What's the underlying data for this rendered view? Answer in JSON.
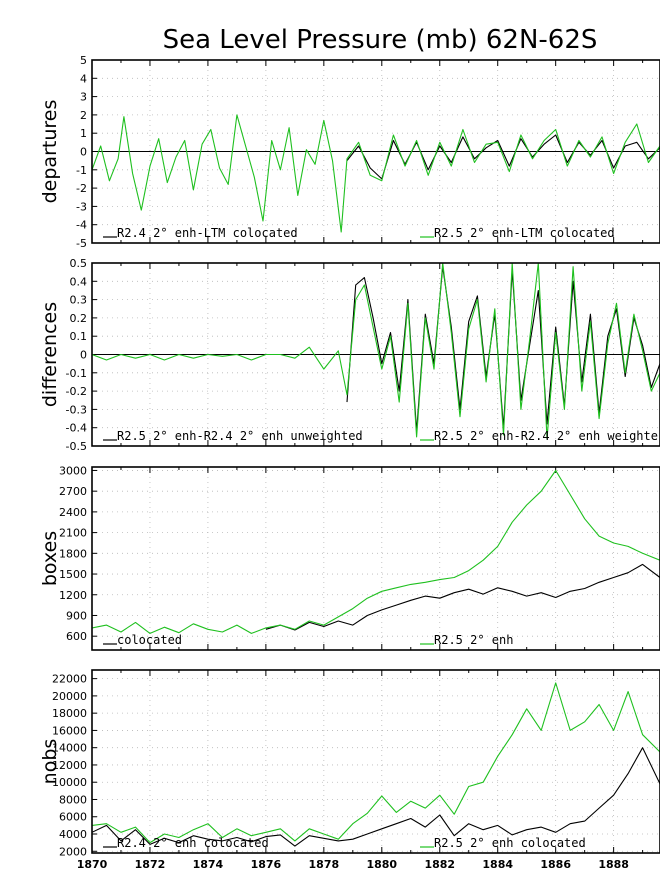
{
  "title": "Sea Level Pressure (mb) 62N-62S",
  "colors": {
    "series_a": "#000000",
    "series_b": "#1fc01f"
  },
  "chart_data": [
    {
      "type": "line",
      "ylabel": "departures",
      "ylim": [
        -5,
        5
      ],
      "yticks": [
        -5,
        -4,
        -3,
        -2,
        -1,
        0,
        1,
        2,
        3,
        4,
        5
      ],
      "xlim": [
        1870,
        1889.6
      ],
      "xticks": [
        1870,
        1872,
        1874,
        1876,
        1878,
        1880,
        1882,
        1884,
        1886,
        1888
      ],
      "zero_line": true,
      "legend": [
        "R2.4 2° enh-LTM colocated",
        "R2.5 2° enh-LTM colocated"
      ],
      "series": [
        {
          "name": "R2.4 2° enh-LTM colocated",
          "color": "#000000",
          "start": 1878.8,
          "x": [
            1878.8,
            1879.2,
            1879.6,
            1880.0,
            1880.4,
            1880.8,
            1881.2,
            1881.6,
            1882.0,
            1882.4,
            1882.8,
            1883.2,
            1883.6,
            1884.0,
            1884.4,
            1884.8,
            1885.2,
            1885.6,
            1886.0,
            1886.4,
            1886.8,
            1887.2,
            1887.6,
            1888.0,
            1888.4,
            1888.8,
            1889.2,
            1889.6
          ],
          "y": [
            -0.5,
            0.3,
            -0.9,
            -1.5,
            0.6,
            -0.7,
            0.5,
            -1.0,
            0.3,
            -0.6,
            0.8,
            -0.4,
            0.2,
            0.6,
            -0.8,
            0.7,
            -0.3,
            0.4,
            0.9,
            -0.6,
            0.5,
            -0.2,
            0.6,
            -0.9,
            0.3,
            0.5,
            -0.4,
            0.2
          ]
        },
        {
          "name": "R2.5 2° enh-LTM colocated",
          "color": "#1fc01f",
          "start": 1870,
          "x": [
            1870.0,
            1870.3,
            1870.6,
            1870.9,
            1871.1,
            1871.4,
            1871.7,
            1872.0,
            1872.3,
            1872.6,
            1872.9,
            1873.2,
            1873.5,
            1873.8,
            1874.1,
            1874.4,
            1874.7,
            1875.0,
            1875.3,
            1875.6,
            1875.9,
            1876.2,
            1876.5,
            1876.8,
            1877.1,
            1877.4,
            1877.7,
            1878.0,
            1878.3,
            1878.6,
            1878.8,
            1879.2,
            1879.6,
            1880.0,
            1880.4,
            1880.8,
            1881.2,
            1881.6,
            1882.0,
            1882.4,
            1882.8,
            1883.2,
            1883.6,
            1884.0,
            1884.4,
            1884.8,
            1885.2,
            1885.6,
            1886.0,
            1886.4,
            1886.8,
            1887.2,
            1887.6,
            1888.0,
            1888.4,
            1888.8,
            1889.2,
            1889.6
          ],
          "y": [
            -1.0,
            0.3,
            -1.6,
            -0.4,
            1.9,
            -1.2,
            -3.2,
            -0.8,
            0.7,
            -1.7,
            -0.3,
            0.6,
            -2.1,
            0.4,
            1.2,
            -0.9,
            -1.8,
            2.0,
            0.3,
            -1.4,
            -3.8,
            0.6,
            -1.0,
            1.3,
            -2.4,
            0.1,
            -0.7,
            1.7,
            -0.5,
            -4.4,
            -0.4,
            0.5,
            -1.3,
            -1.6,
            0.9,
            -0.8,
            0.6,
            -1.3,
            0.5,
            -0.8,
            1.2,
            -0.6,
            0.4,
            0.5,
            -1.1,
            0.9,
            -0.4,
            0.6,
            1.2,
            -0.8,
            0.6,
            -0.3,
            0.8,
            -1.2,
            0.5,
            1.5,
            -0.6,
            0.3
          ]
        }
      ]
    },
    {
      "type": "line",
      "ylabel": "differences",
      "ylim": [
        -0.5,
        0.5
      ],
      "yticks": [
        -0.5,
        -0.4,
        -0.3,
        -0.2,
        -0.1,
        0,
        0.1,
        0.2,
        0.3,
        0.4,
        0.5
      ],
      "xlim": [
        1870,
        1889.6
      ],
      "xticks": [
        1870,
        1872,
        1874,
        1876,
        1878,
        1880,
        1882,
        1884,
        1886,
        1888
      ],
      "zero_line": true,
      "legend": [
        "R2.5 2° enh-R2.4 2° enh unweighted",
        "R2.5 2° enh-R2.4 2° enh weighte"
      ],
      "series": [
        {
          "name": "R2.5 2° enh-R2.4 2° enh unweighted",
          "color": "#000000",
          "start": 1878.8,
          "x": [
            1878.8,
            1879.1,
            1879.4,
            1879.7,
            1880.0,
            1880.3,
            1880.6,
            1880.9,
            1881.2,
            1881.5,
            1881.8,
            1882.1,
            1882.4,
            1882.7,
            1883.0,
            1883.3,
            1883.6,
            1883.9,
            1884.2,
            1884.5,
            1884.8,
            1885.1,
            1885.4,
            1885.7,
            1886.0,
            1886.3,
            1886.6,
            1886.9,
            1887.2,
            1887.5,
            1887.8,
            1888.1,
            1888.4,
            1888.7,
            1889.0,
            1889.3,
            1889.6
          ],
          "y": [
            -0.26,
            0.38,
            0.42,
            0.2,
            -0.05,
            0.12,
            -0.2,
            0.3,
            -0.42,
            0.22,
            -0.05,
            0.48,
            0.15,
            -0.3,
            0.18,
            0.32,
            -0.12,
            0.22,
            -0.4,
            0.46,
            -0.25,
            0.05,
            0.35,
            -0.38,
            0.15,
            -0.28,
            0.4,
            -0.15,
            0.22,
            -0.32,
            0.1,
            0.25,
            -0.12,
            0.2,
            0.05,
            -0.18,
            -0.05
          ]
        },
        {
          "name": "R2.5 2° enh-R2.4 2° enh weighte",
          "color": "#1fc01f",
          "start": 1870,
          "x": [
            1870.0,
            1870.5,
            1871.0,
            1871.5,
            1872.0,
            1872.5,
            1873.0,
            1873.5,
            1874.0,
            1874.5,
            1875.0,
            1875.5,
            1876.0,
            1876.5,
            1877.0,
            1877.5,
            1878.0,
            1878.5,
            1878.8,
            1879.1,
            1879.4,
            1879.7,
            1880.0,
            1880.3,
            1880.6,
            1880.9,
            1881.2,
            1881.5,
            1881.8,
            1882.1,
            1882.4,
            1882.7,
            1883.0,
            1883.3,
            1883.6,
            1883.9,
            1884.2,
            1884.5,
            1884.8,
            1885.1,
            1885.4,
            1885.7,
            1886.0,
            1886.3,
            1886.6,
            1886.9,
            1887.2,
            1887.5,
            1887.8,
            1888.1,
            1888.4,
            1888.7,
            1889.0,
            1889.3,
            1889.6
          ],
          "y": [
            0.0,
            -0.03,
            0.0,
            -0.02,
            0.0,
            -0.03,
            0.0,
            -0.02,
            0.0,
            -0.01,
            0.0,
            -0.03,
            0.0,
            0.0,
            -0.02,
            0.04,
            -0.08,
            0.02,
            -0.22,
            0.3,
            0.38,
            0.15,
            -0.08,
            0.1,
            -0.26,
            0.28,
            -0.45,
            0.2,
            -0.08,
            0.5,
            0.12,
            -0.34,
            0.14,
            0.3,
            -0.15,
            0.25,
            -0.44,
            0.5,
            -0.3,
            0.08,
            0.5,
            -0.46,
            0.12,
            -0.3,
            0.48,
            -0.2,
            0.18,
            -0.35,
            0.06,
            0.28,
            -0.1,
            0.22,
            0.02,
            -0.2,
            -0.1
          ]
        }
      ]
    },
    {
      "type": "line",
      "ylabel": "boxes",
      "ylim": [
        400,
        3050
      ],
      "yticks": [
        600,
        900,
        1200,
        1500,
        1800,
        2100,
        2400,
        2700,
        3000
      ],
      "xlim": [
        1870,
        1889.6
      ],
      "xticks": [
        1870,
        1872,
        1874,
        1876,
        1878,
        1880,
        1882,
        1884,
        1886,
        1888
      ],
      "zero_line": false,
      "legend": [
        "colocated",
        "R2.5 2° enh"
      ],
      "series": [
        {
          "name": "colocated",
          "color": "#000000",
          "start": 1876.0,
          "x": [
            1876.0,
            1876.5,
            1877.0,
            1877.5,
            1878.0,
            1878.5,
            1879.0,
            1879.5,
            1880.0,
            1880.5,
            1881.0,
            1881.5,
            1882.0,
            1882.5,
            1883.0,
            1883.5,
            1884.0,
            1884.5,
            1885.0,
            1885.5,
            1886.0,
            1886.5,
            1887.0,
            1887.5,
            1888.0,
            1888.5,
            1889.0,
            1889.6
          ],
          "y": [
            700,
            760,
            690,
            800,
            740,
            820,
            760,
            900,
            980,
            1050,
            1120,
            1180,
            1150,
            1230,
            1280,
            1210,
            1300,
            1250,
            1180,
            1230,
            1160,
            1250,
            1290,
            1380,
            1450,
            1520,
            1640,
            1450
          ]
        },
        {
          "name": "R2.5 2° enh",
          "color": "#1fc01f",
          "start": 1870,
          "x": [
            1870.0,
            1870.5,
            1871.0,
            1871.5,
            1872.0,
            1872.5,
            1873.0,
            1873.5,
            1874.0,
            1874.5,
            1875.0,
            1875.5,
            1876.0,
            1876.5,
            1877.0,
            1877.5,
            1878.0,
            1878.5,
            1879.0,
            1879.5,
            1880.0,
            1880.5,
            1881.0,
            1881.5,
            1882.0,
            1882.5,
            1883.0,
            1883.5,
            1884.0,
            1884.5,
            1885.0,
            1885.5,
            1886.0,
            1886.5,
            1887.0,
            1887.5,
            1888.0,
            1888.5,
            1889.0,
            1889.6
          ],
          "y": [
            720,
            760,
            660,
            800,
            640,
            730,
            650,
            780,
            700,
            660,
            760,
            640,
            720,
            760,
            700,
            820,
            760,
            880,
            1000,
            1150,
            1250,
            1300,
            1350,
            1380,
            1420,
            1450,
            1550,
            1700,
            1900,
            2250,
            2500,
            2700,
            3000,
            2650,
            2300,
            2050,
            1950,
            1900,
            1800,
            1700
          ]
        }
      ]
    },
    {
      "type": "line",
      "ylabel": "nobs",
      "ylim": [
        1800,
        23000
      ],
      "yticks": [
        2000,
        4000,
        6000,
        8000,
        10000,
        12000,
        14000,
        16000,
        18000,
        20000,
        22000
      ],
      "xlim": [
        1870,
        1889.6
      ],
      "xticks": [
        1870,
        1872,
        1874,
        1876,
        1878,
        1880,
        1882,
        1884,
        1886,
        1888
      ],
      "zero_line": false,
      "legend": [
        "R2.4 2° enh colocated",
        "R2.5 2° enh colocated"
      ],
      "series": [
        {
          "name": "R2.4 2° enh colocated",
          "color": "#000000",
          "start": 1870,
          "x": [
            1870.0,
            1870.5,
            1871.0,
            1871.5,
            1872.0,
            1872.5,
            1873.0,
            1873.5,
            1874.0,
            1874.5,
            1875.0,
            1875.5,
            1876.0,
            1876.5,
            1877.0,
            1877.5,
            1878.0,
            1878.5,
            1879.0,
            1879.5,
            1880.0,
            1880.5,
            1881.0,
            1881.5,
            1882.0,
            1882.5,
            1883.0,
            1883.5,
            1884.0,
            1884.5,
            1885.0,
            1885.5,
            1886.0,
            1886.5,
            1887.0,
            1887.5,
            1888.0,
            1888.5,
            1889.0,
            1889.6
          ],
          "y": [
            4200,
            5000,
            3200,
            4500,
            2800,
            3500,
            3000,
            3800,
            3400,
            3200,
            3600,
            3100,
            3700,
            3900,
            2600,
            3800,
            3500,
            3200,
            3400,
            4000,
            4600,
            5200,
            5800,
            4800,
            6200,
            3800,
            5200,
            4500,
            5000,
            3900,
            4500,
            4800,
            4200,
            5200,
            5500,
            7000,
            8500,
            11000,
            14000,
            9800
          ]
        },
        {
          "name": "R2.5 2° enh colocated",
          "color": "#1fc01f",
          "start": 1870,
          "x": [
            1870.0,
            1870.5,
            1871.0,
            1871.5,
            1872.0,
            1872.5,
            1873.0,
            1873.5,
            1874.0,
            1874.5,
            1875.0,
            1875.5,
            1876.0,
            1876.5,
            1877.0,
            1877.5,
            1878.0,
            1878.5,
            1879.0,
            1879.5,
            1880.0,
            1880.5,
            1881.0,
            1881.5,
            1882.0,
            1882.5,
            1883.0,
            1883.5,
            1884.0,
            1884.5,
            1885.0,
            1885.5,
            1886.0,
            1886.5,
            1887.0,
            1887.5,
            1888.0,
            1888.5,
            1889.0,
            1889.6
          ],
          "y": [
            5000,
            5200,
            4200,
            4800,
            3000,
            4000,
            3600,
            4500,
            5200,
            3600,
            4600,
            3800,
            4200,
            4600,
            3200,
            4600,
            4000,
            3400,
            5200,
            6400,
            8400,
            6500,
            7800,
            7000,
            8500,
            6300,
            9500,
            10000,
            13000,
            15500,
            18500,
            16000,
            21500,
            16000,
            17000,
            19000,
            16000,
            20500,
            15500,
            13500
          ]
        }
      ]
    }
  ]
}
